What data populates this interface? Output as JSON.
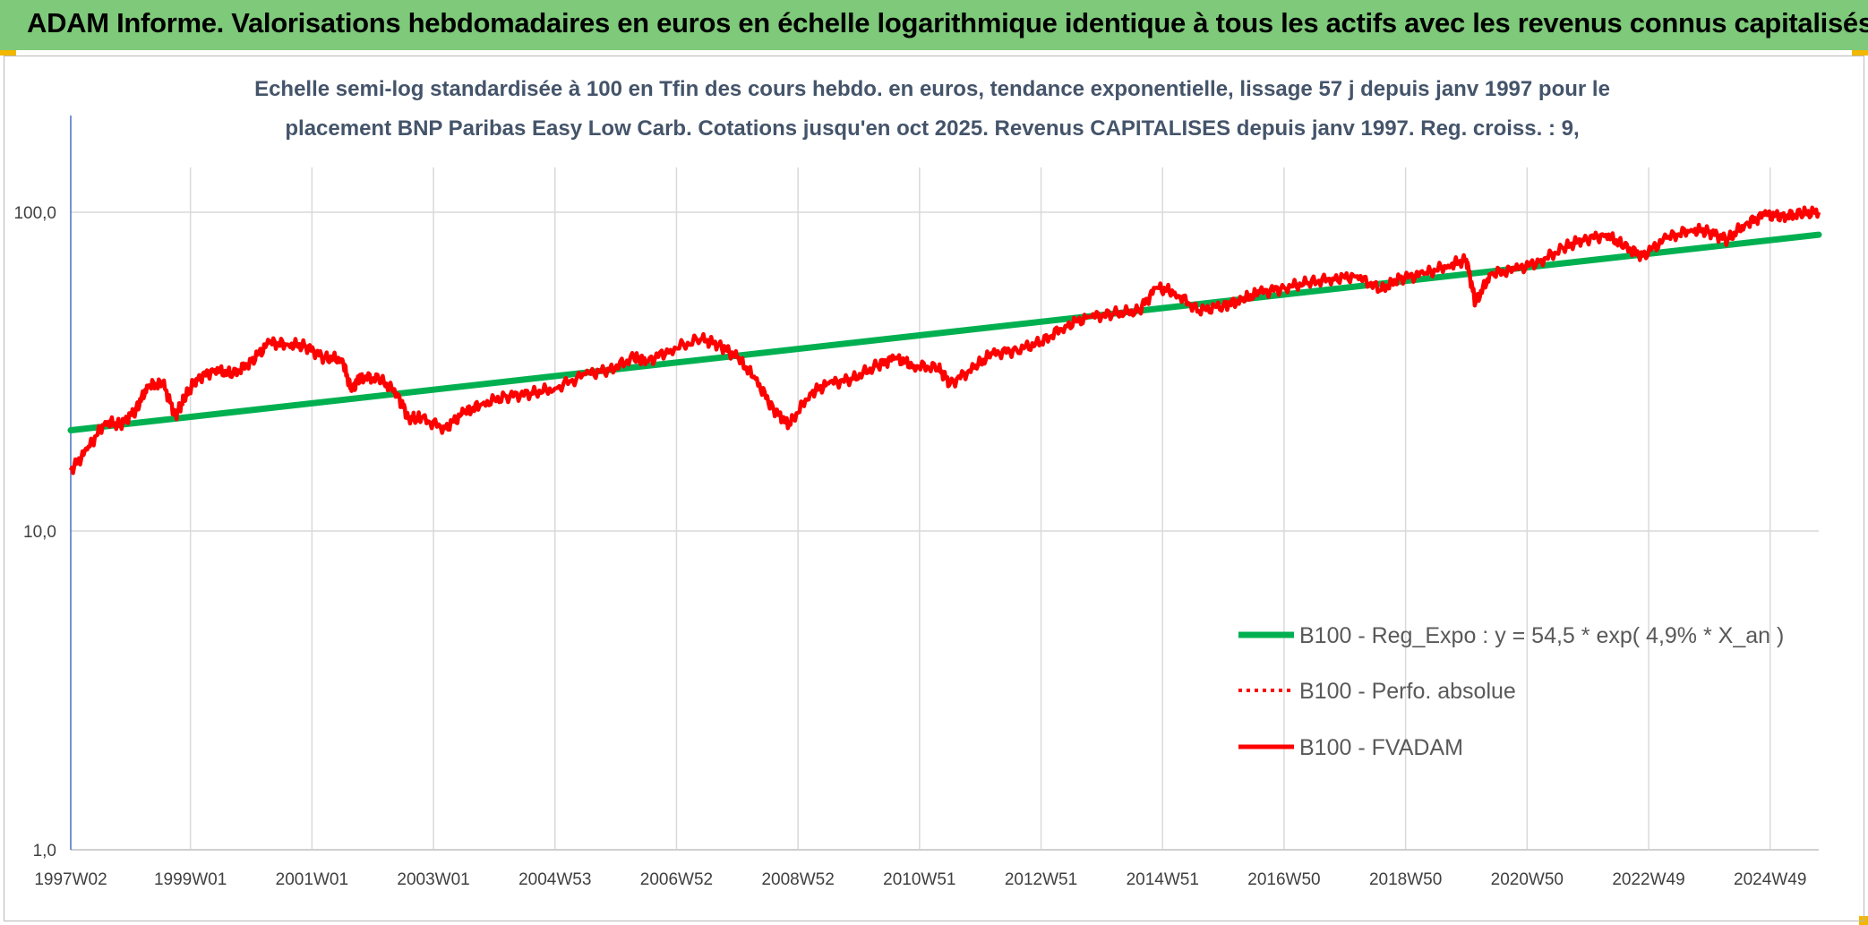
{
  "header": {
    "title": "ADAM Informe. Valorisations hebdomadaires en euros en échelle logarithmique identique à tous les actifs avec les revenus connus capitalisés"
  },
  "colors": {
    "header_bg": "#7ec97a",
    "corner_accent": "#f2b800",
    "trend_line": "#00b050",
    "price_line": "#ff0000",
    "gridline": "#d9d9d9",
    "axis_text": "#404040",
    "title_text": "#44546a"
  },
  "chart_data": {
    "type": "line",
    "title_line1": "Echelle semi-log standardisée à 100 en Tfin des cours hebdo. en euros, tendance exponentielle, lissage 57 j depuis janv 1997 pour le",
    "title_line2": "placement BNP Paribas Easy Low Carb. Cotations jusqu'en oct 2025. Revenus CAPITALISES depuis janv 1997. Reg. croiss. : 9,",
    "y_scale": "log",
    "ylim": [
      1,
      100
    ],
    "y_ticks": [
      {
        "value": 100,
        "label": "100,0"
      },
      {
        "value": 10,
        "label": "10,0"
      },
      {
        "value": 1,
        "label": "1,0"
      }
    ],
    "xlim": [
      1997.03,
      2025.8
    ],
    "x_ticks": [
      {
        "value": 1997.03,
        "label": "1997W02"
      },
      {
        "value": 1999.0,
        "label": "1999W01"
      },
      {
        "value": 2001.0,
        "label": "2001W01"
      },
      {
        "value": 2003.0,
        "label": "2003W01"
      },
      {
        "value": 2005.0,
        "label": "2004W53"
      },
      {
        "value": 2007.0,
        "label": "2006W52"
      },
      {
        "value": 2009.0,
        "label": "2008W52"
      },
      {
        "value": 2011.0,
        "label": "2010W51"
      },
      {
        "value": 2013.0,
        "label": "2012W51"
      },
      {
        "value": 2015.0,
        "label": "2014W51"
      },
      {
        "value": 2017.0,
        "label": "2016W50"
      },
      {
        "value": 2019.0,
        "label": "2018W50"
      },
      {
        "value": 2021.0,
        "label": "2020W50"
      },
      {
        "value": 2023.0,
        "label": "2022W49"
      },
      {
        "value": 2025.0,
        "label": "2024W49"
      }
    ],
    "grid": true,
    "legend_position": "bottom-right",
    "series": [
      {
        "name": "B100 - Reg_Expo : y = 54,5 * exp( 4,9% * X_an )",
        "style": "solid-thick",
        "color": "#00b050",
        "x": [
          1997.03,
          2025.8
        ],
        "y": [
          20.7,
          85.0
        ]
      },
      {
        "name": "B100 - Perfo. absolue",
        "style": "dotted",
        "color": "#ff0000",
        "x": [],
        "y": []
      },
      {
        "name": "B100 - FVADAM",
        "style": "solid",
        "color": "#ff0000",
        "x": [
          1997.03,
          1997.3,
          1997.6,
          1997.85,
          1998.1,
          1998.3,
          1998.55,
          1998.75,
          1998.9,
          1999.1,
          1999.4,
          1999.7,
          2000.0,
          2000.3,
          2000.6,
          2000.9,
          2001.2,
          2001.5,
          2001.65,
          2001.8,
          2002.1,
          2002.4,
          2002.6,
          2002.8,
          2003.2,
          2003.5,
          2003.8,
          2004.2,
          2004.6,
          2005.0,
          2005.5,
          2005.9,
          2006.3,
          2006.5,
          2006.9,
          2007.4,
          2007.7,
          2008.0,
          2008.3,
          2008.6,
          2008.85,
          2009.2,
          2009.5,
          2009.9,
          2010.3,
          2010.6,
          2010.9,
          2011.3,
          2011.5,
          2011.9,
          2012.2,
          2012.6,
          2013.0,
          2013.4,
          2013.8,
          2014.2,
          2014.6,
          2014.9,
          2015.2,
          2015.6,
          2016.0,
          2016.3,
          2016.6,
          2017.0,
          2017.4,
          2017.8,
          2018.2,
          2018.6,
          2018.9,
          2019.3,
          2019.7,
          2020.0,
          2020.15,
          2020.4,
          2020.8,
          2021.2,
          2021.6,
          2021.9,
          2022.3,
          2022.6,
          2022.9,
          2023.3,
          2023.7,
          2024.0,
          2024.3,
          2024.6,
          2024.9,
          2025.2,
          2025.5,
          2025.8
        ],
        "y": [
          15.5,
          18.0,
          22.0,
          21.5,
          24.0,
          28.5,
          29.0,
          23.0,
          26.0,
          30.0,
          32.0,
          31.0,
          34.0,
          39.0,
          38.5,
          38.0,
          35.0,
          34.5,
          27.5,
          30.5,
          30.0,
          27.0,
          22.5,
          22.5,
          21.0,
          23.5,
          25.0,
          26.5,
          27.0,
          28.0,
          31.0,
          32.0,
          35.0,
          34.0,
          37.0,
          40.0,
          38.5,
          35.0,
          30.0,
          24.0,
          21.5,
          27.0,
          29.0,
          30.0,
          33.0,
          35.0,
          33.0,
          32.5,
          29.0,
          32.5,
          36.0,
          37.0,
          39.0,
          44.0,
          47.0,
          48.0,
          49.0,
          58.0,
          56.0,
          49.0,
          51.0,
          53.0,
          56.0,
          58.0,
          60.0,
          62.0,
          63.0,
          57.0,
          62.0,
          64.0,
          68.0,
          71.0,
          52.0,
          64.0,
          66.0,
          70.0,
          77.0,
          82.0,
          85.0,
          78.0,
          73.0,
          83.0,
          88.0,
          87.0,
          82.0,
          92.0,
          98.0,
          97.0,
          99.0,
          100.0
        ]
      }
    ]
  }
}
